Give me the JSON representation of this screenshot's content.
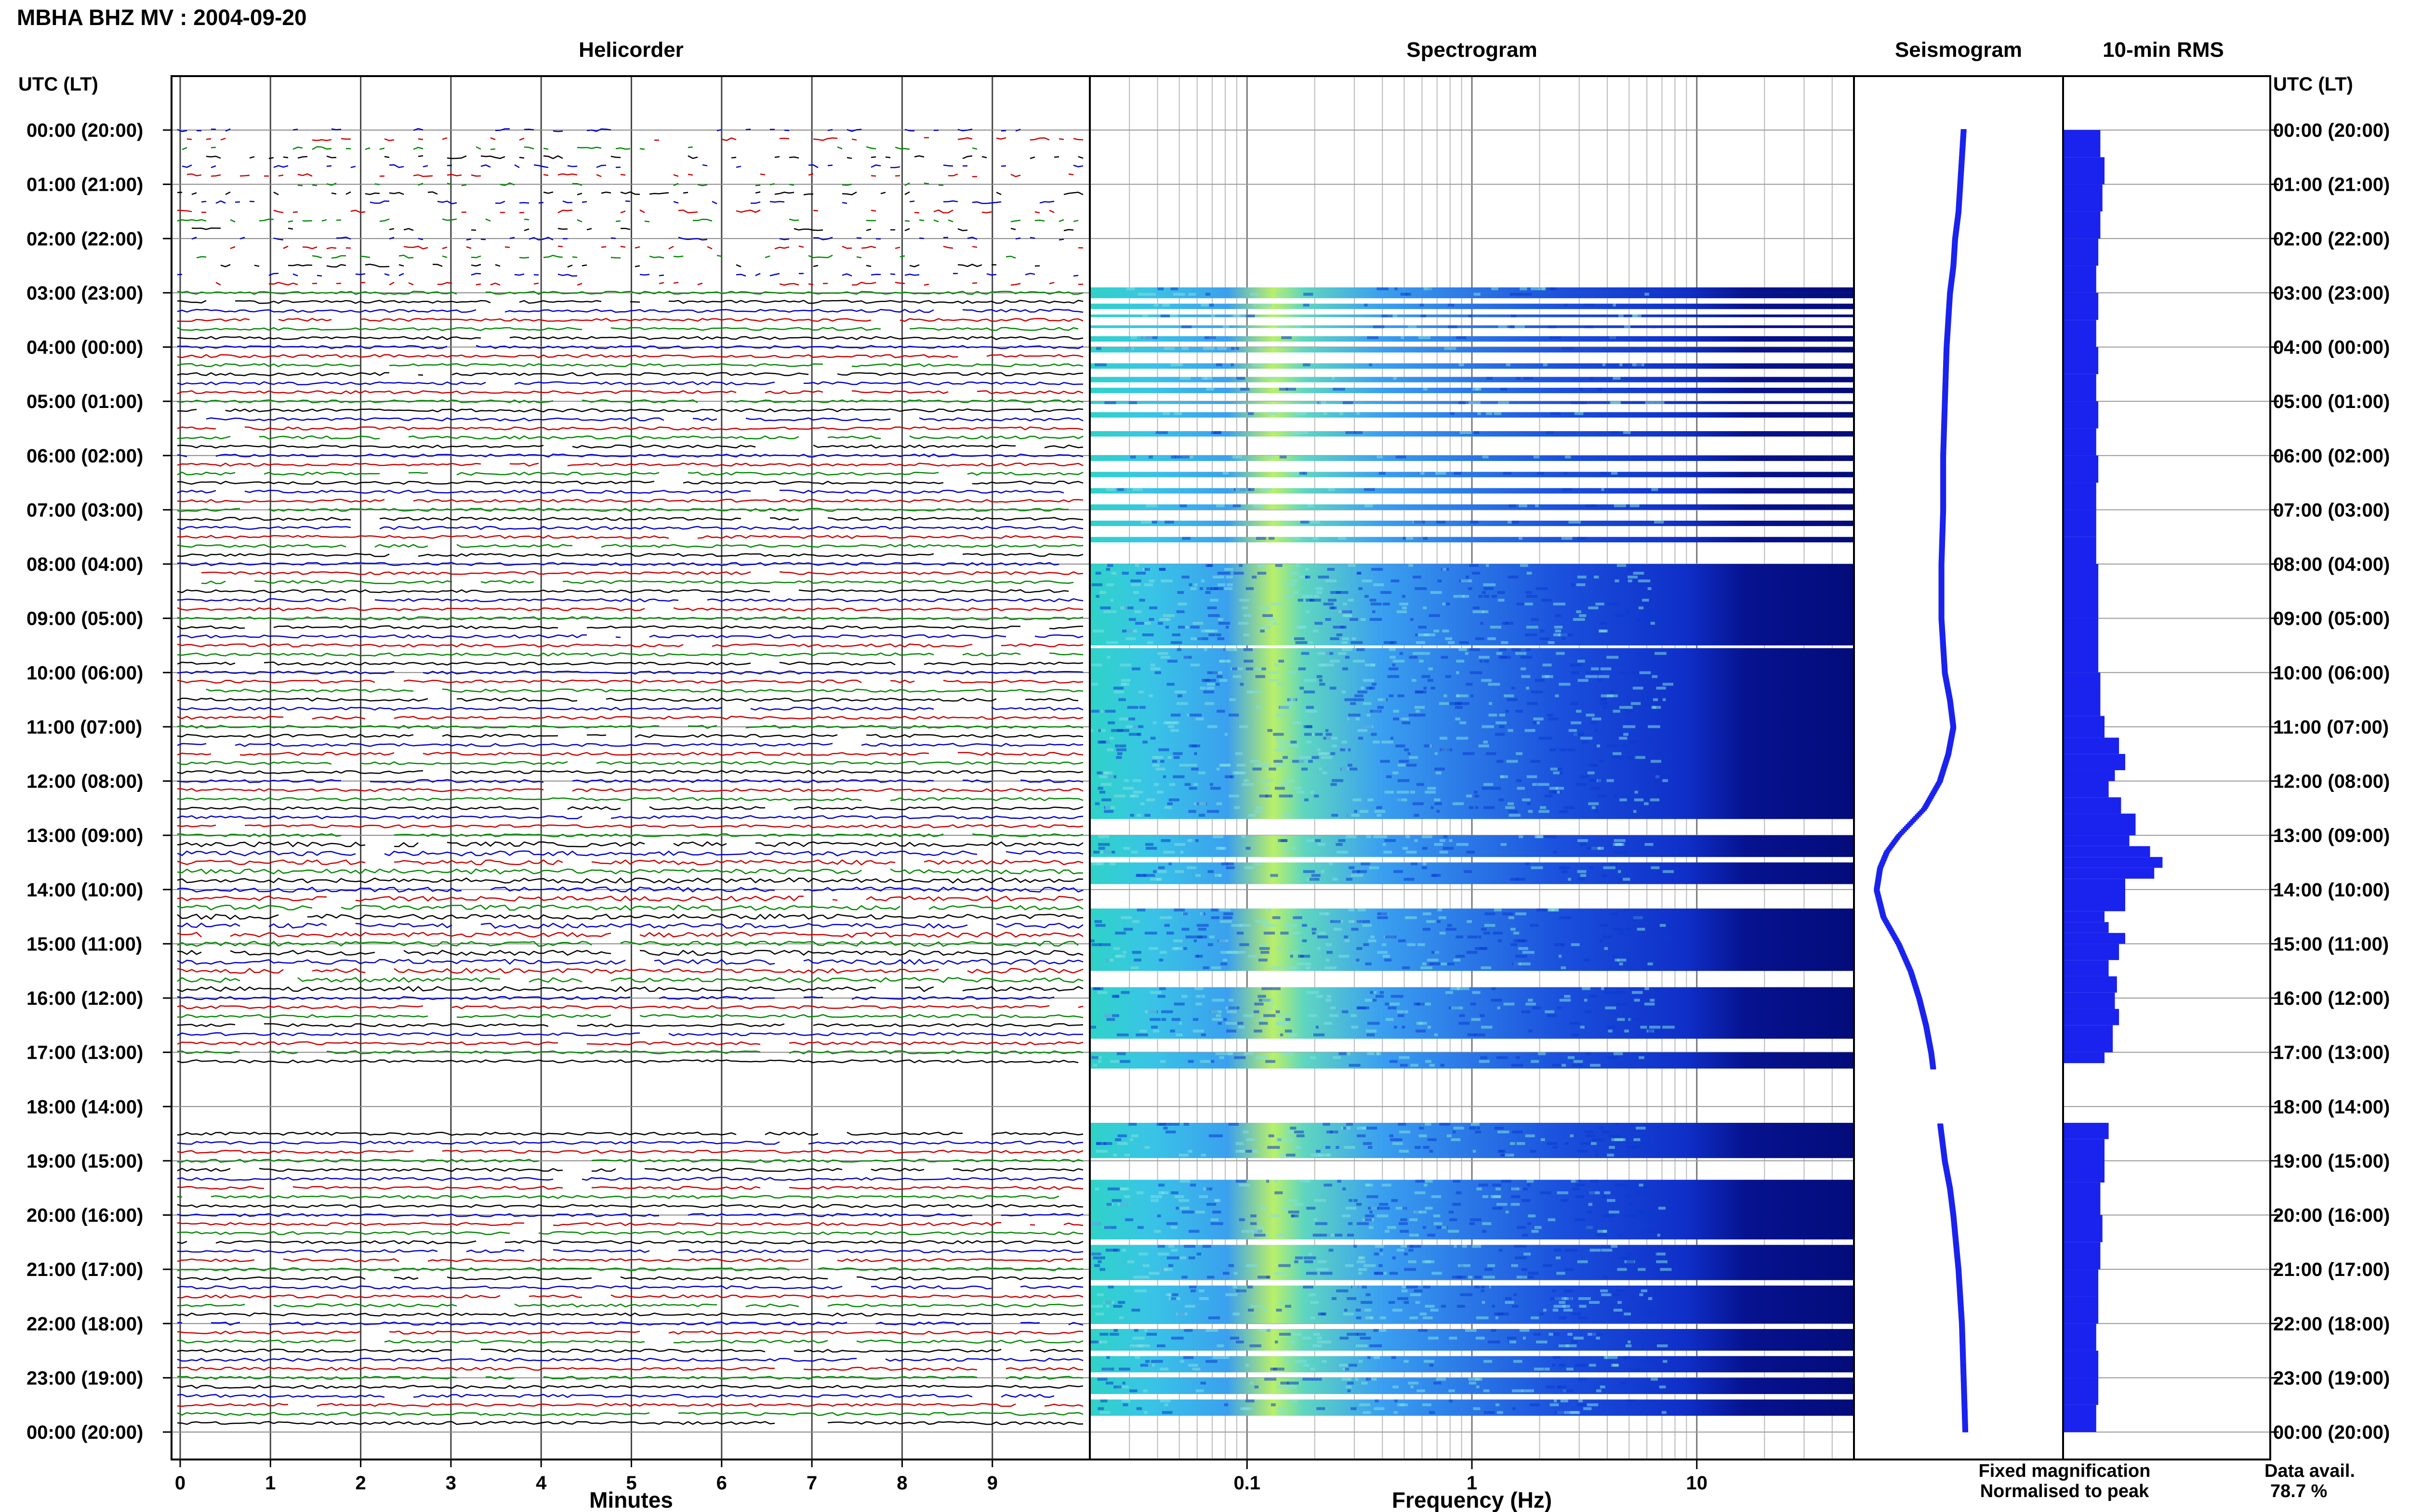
{
  "header": {
    "title": "MBHA BHZ MV : 2004-09-20",
    "utc_label_left": "UTC (LT)",
    "utc_label_right": "UTC (LT)"
  },
  "panels": {
    "helicorder": "Helicorder",
    "spectrogram": "Spectrogram",
    "seismogram": "Seismogram",
    "rms": "10-min RMS"
  },
  "axes": {
    "minutes_label": "Minutes",
    "frequency_label": "Frequency (Hz)",
    "minute_ticks": [
      "0",
      "1",
      "2",
      "3",
      "4",
      "5",
      "6",
      "7",
      "8",
      "9"
    ],
    "frequency_ticks": [
      "0.1",
      "1",
      "10"
    ],
    "hour_labels": [
      "00:00 (20:00)",
      "01:00 (21:00)",
      "02:00 (22:00)",
      "03:00 (23:00)",
      "04:00 (00:00)",
      "05:00 (01:00)",
      "06:00 (02:00)",
      "07:00 (03:00)",
      "08:00 (04:00)",
      "09:00 (05:00)",
      "10:00 (06:00)",
      "11:00 (07:00)",
      "12:00 (08:00)",
      "13:00 (09:00)",
      "14:00 (10:00)",
      "15:00 (11:00)",
      "16:00 (12:00)",
      "17:00 (13:00)",
      "18:00 (14:00)",
      "19:00 (15:00)",
      "20:00 (16:00)",
      "21:00 (17:00)",
      "22:00 (18:00)",
      "23:00 (19:00)",
      "00:00 (20:00)"
    ]
  },
  "legend": {
    "fixed": "Fixed magnification",
    "normalised": "Normalised to peak",
    "fixed_color": "#0000ff",
    "normalised_color": "#ff0000"
  },
  "availability": {
    "label": "Data avail.",
    "value": "78.7 %"
  },
  "chart_data": {
    "type": "heatmap",
    "station": "MBHA",
    "channel": "BHZ",
    "network": "MV",
    "date": "2004-09-20",
    "hours": 24,
    "trace_colors": [
      "#0000cc",
      "#cc0000",
      "#008800",
      "#000000"
    ],
    "spectrogram": {
      "x_scale": "log",
      "x_range_hz": [
        0.02,
        50
      ],
      "data_segments_utc_hours": [
        [
          2.9,
          3.0
        ],
        [
          3.0,
          3.1
        ],
        [
          3.2,
          3.3
        ],
        [
          3.4,
          3.45
        ],
        [
          3.6,
          3.65
        ],
        [
          3.8,
          3.9
        ],
        [
          4.0,
          4.1
        ],
        [
          4.3,
          4.4
        ],
        [
          4.55,
          4.65
        ],
        [
          4.75,
          4.85
        ],
        [
          5.0,
          5.05
        ],
        [
          5.2,
          5.3
        ],
        [
          5.55,
          5.65
        ],
        [
          6.0,
          6.1
        ],
        [
          6.3,
          6.4
        ],
        [
          6.6,
          6.7
        ],
        [
          6.9,
          7.0
        ],
        [
          7.2,
          7.3
        ],
        [
          7.5,
          7.6
        ],
        [
          8.0,
          9.5
        ],
        [
          9.55,
          12.7
        ],
        [
          13.0,
          13.4
        ],
        [
          13.5,
          13.9
        ],
        [
          14.35,
          15.5
        ],
        [
          15.8,
          16.75
        ],
        [
          17.0,
          17.3
        ],
        [
          18.3,
          18.95
        ],
        [
          19.35,
          20.45
        ],
        [
          20.55,
          21.2
        ],
        [
          21.3,
          22.0
        ],
        [
          22.1,
          22.5
        ],
        [
          22.6,
          22.9
        ],
        [
          23.0,
          23.3
        ],
        [
          23.4,
          23.7
        ]
      ]
    },
    "seismogram_offsets": [
      [
        0.0,
        0.53
      ],
      [
        0.5,
        0.52
      ],
      [
        1.0,
        0.51
      ],
      [
        1.5,
        0.5
      ],
      [
        2.0,
        0.48
      ],
      [
        2.5,
        0.47
      ],
      [
        3.0,
        0.45
      ],
      [
        4.0,
        0.43
      ],
      [
        5.0,
        0.42
      ],
      [
        6.0,
        0.41
      ],
      [
        7.0,
        0.41
      ],
      [
        8.0,
        0.4
      ],
      [
        9.0,
        0.4
      ],
      [
        10.0,
        0.42
      ],
      [
        10.5,
        0.45
      ],
      [
        11.0,
        0.47
      ],
      [
        11.5,
        0.44
      ],
      [
        12.0,
        0.39
      ],
      [
        12.5,
        0.3
      ],
      [
        13.0,
        0.15
      ],
      [
        13.3,
        0.08
      ],
      [
        13.6,
        0.04
      ],
      [
        14.0,
        0.02
      ],
      [
        14.5,
        0.06
      ],
      [
        15.0,
        0.15
      ],
      [
        15.5,
        0.22
      ],
      [
        16.0,
        0.27
      ],
      [
        16.5,
        0.31
      ],
      [
        17.0,
        0.34
      ],
      [
        17.5,
        0.36
      ],
      [
        18.5,
        0.4
      ],
      [
        19.0,
        0.42
      ],
      [
        19.5,
        0.45
      ],
      [
        20.0,
        0.47
      ],
      [
        21.0,
        0.5
      ],
      [
        22.0,
        0.52
      ],
      [
        23.0,
        0.53
      ],
      [
        24.0,
        0.54
      ]
    ],
    "rms_bars": [
      [
        0.0,
        0.18
      ],
      [
        0.5,
        0.2
      ],
      [
        1.0,
        0.19
      ],
      [
        1.5,
        0.18
      ],
      [
        2.0,
        0.17
      ],
      [
        2.5,
        0.16
      ],
      [
        3.0,
        0.17
      ],
      [
        3.5,
        0.16
      ],
      [
        4.0,
        0.17
      ],
      [
        4.5,
        0.16
      ],
      [
        5.0,
        0.17
      ],
      [
        5.5,
        0.16
      ],
      [
        6.0,
        0.17
      ],
      [
        6.5,
        0.16
      ],
      [
        7.0,
        0.16
      ],
      [
        7.5,
        0.16
      ],
      [
        8.0,
        0.17
      ],
      [
        9.0,
        0.17
      ],
      [
        10.0,
        0.18
      ],
      [
        10.8,
        0.2
      ],
      [
        11.2,
        0.27
      ],
      [
        11.5,
        0.3
      ],
      [
        11.8,
        0.25
      ],
      [
        12.0,
        0.22
      ],
      [
        12.3,
        0.28
      ],
      [
        12.6,
        0.35
      ],
      [
        13.0,
        0.32
      ],
      [
        13.2,
        0.42
      ],
      [
        13.4,
        0.48
      ],
      [
        13.6,
        0.44
      ],
      [
        13.8,
        0.3
      ],
      [
        14.4,
        0.2
      ],
      [
        14.6,
        0.22
      ],
      [
        14.8,
        0.3
      ],
      [
        15.0,
        0.27
      ],
      [
        15.3,
        0.22
      ],
      [
        15.6,
        0.26
      ],
      [
        15.9,
        0.25
      ],
      [
        16.2,
        0.27
      ],
      [
        16.5,
        0.24
      ],
      [
        17.0,
        0.2
      ],
      [
        17.2,
        0.18
      ],
      [
        18.3,
        0.22
      ],
      [
        18.6,
        0.2
      ],
      [
        19.4,
        0.18
      ],
      [
        20.0,
        0.19
      ],
      [
        20.5,
        0.18
      ],
      [
        21.0,
        0.17
      ],
      [
        21.5,
        0.17
      ],
      [
        22.0,
        0.16
      ],
      [
        22.5,
        0.17
      ],
      [
        23.0,
        0.17
      ],
      [
        23.5,
        0.16
      ]
    ],
    "grid": true
  }
}
